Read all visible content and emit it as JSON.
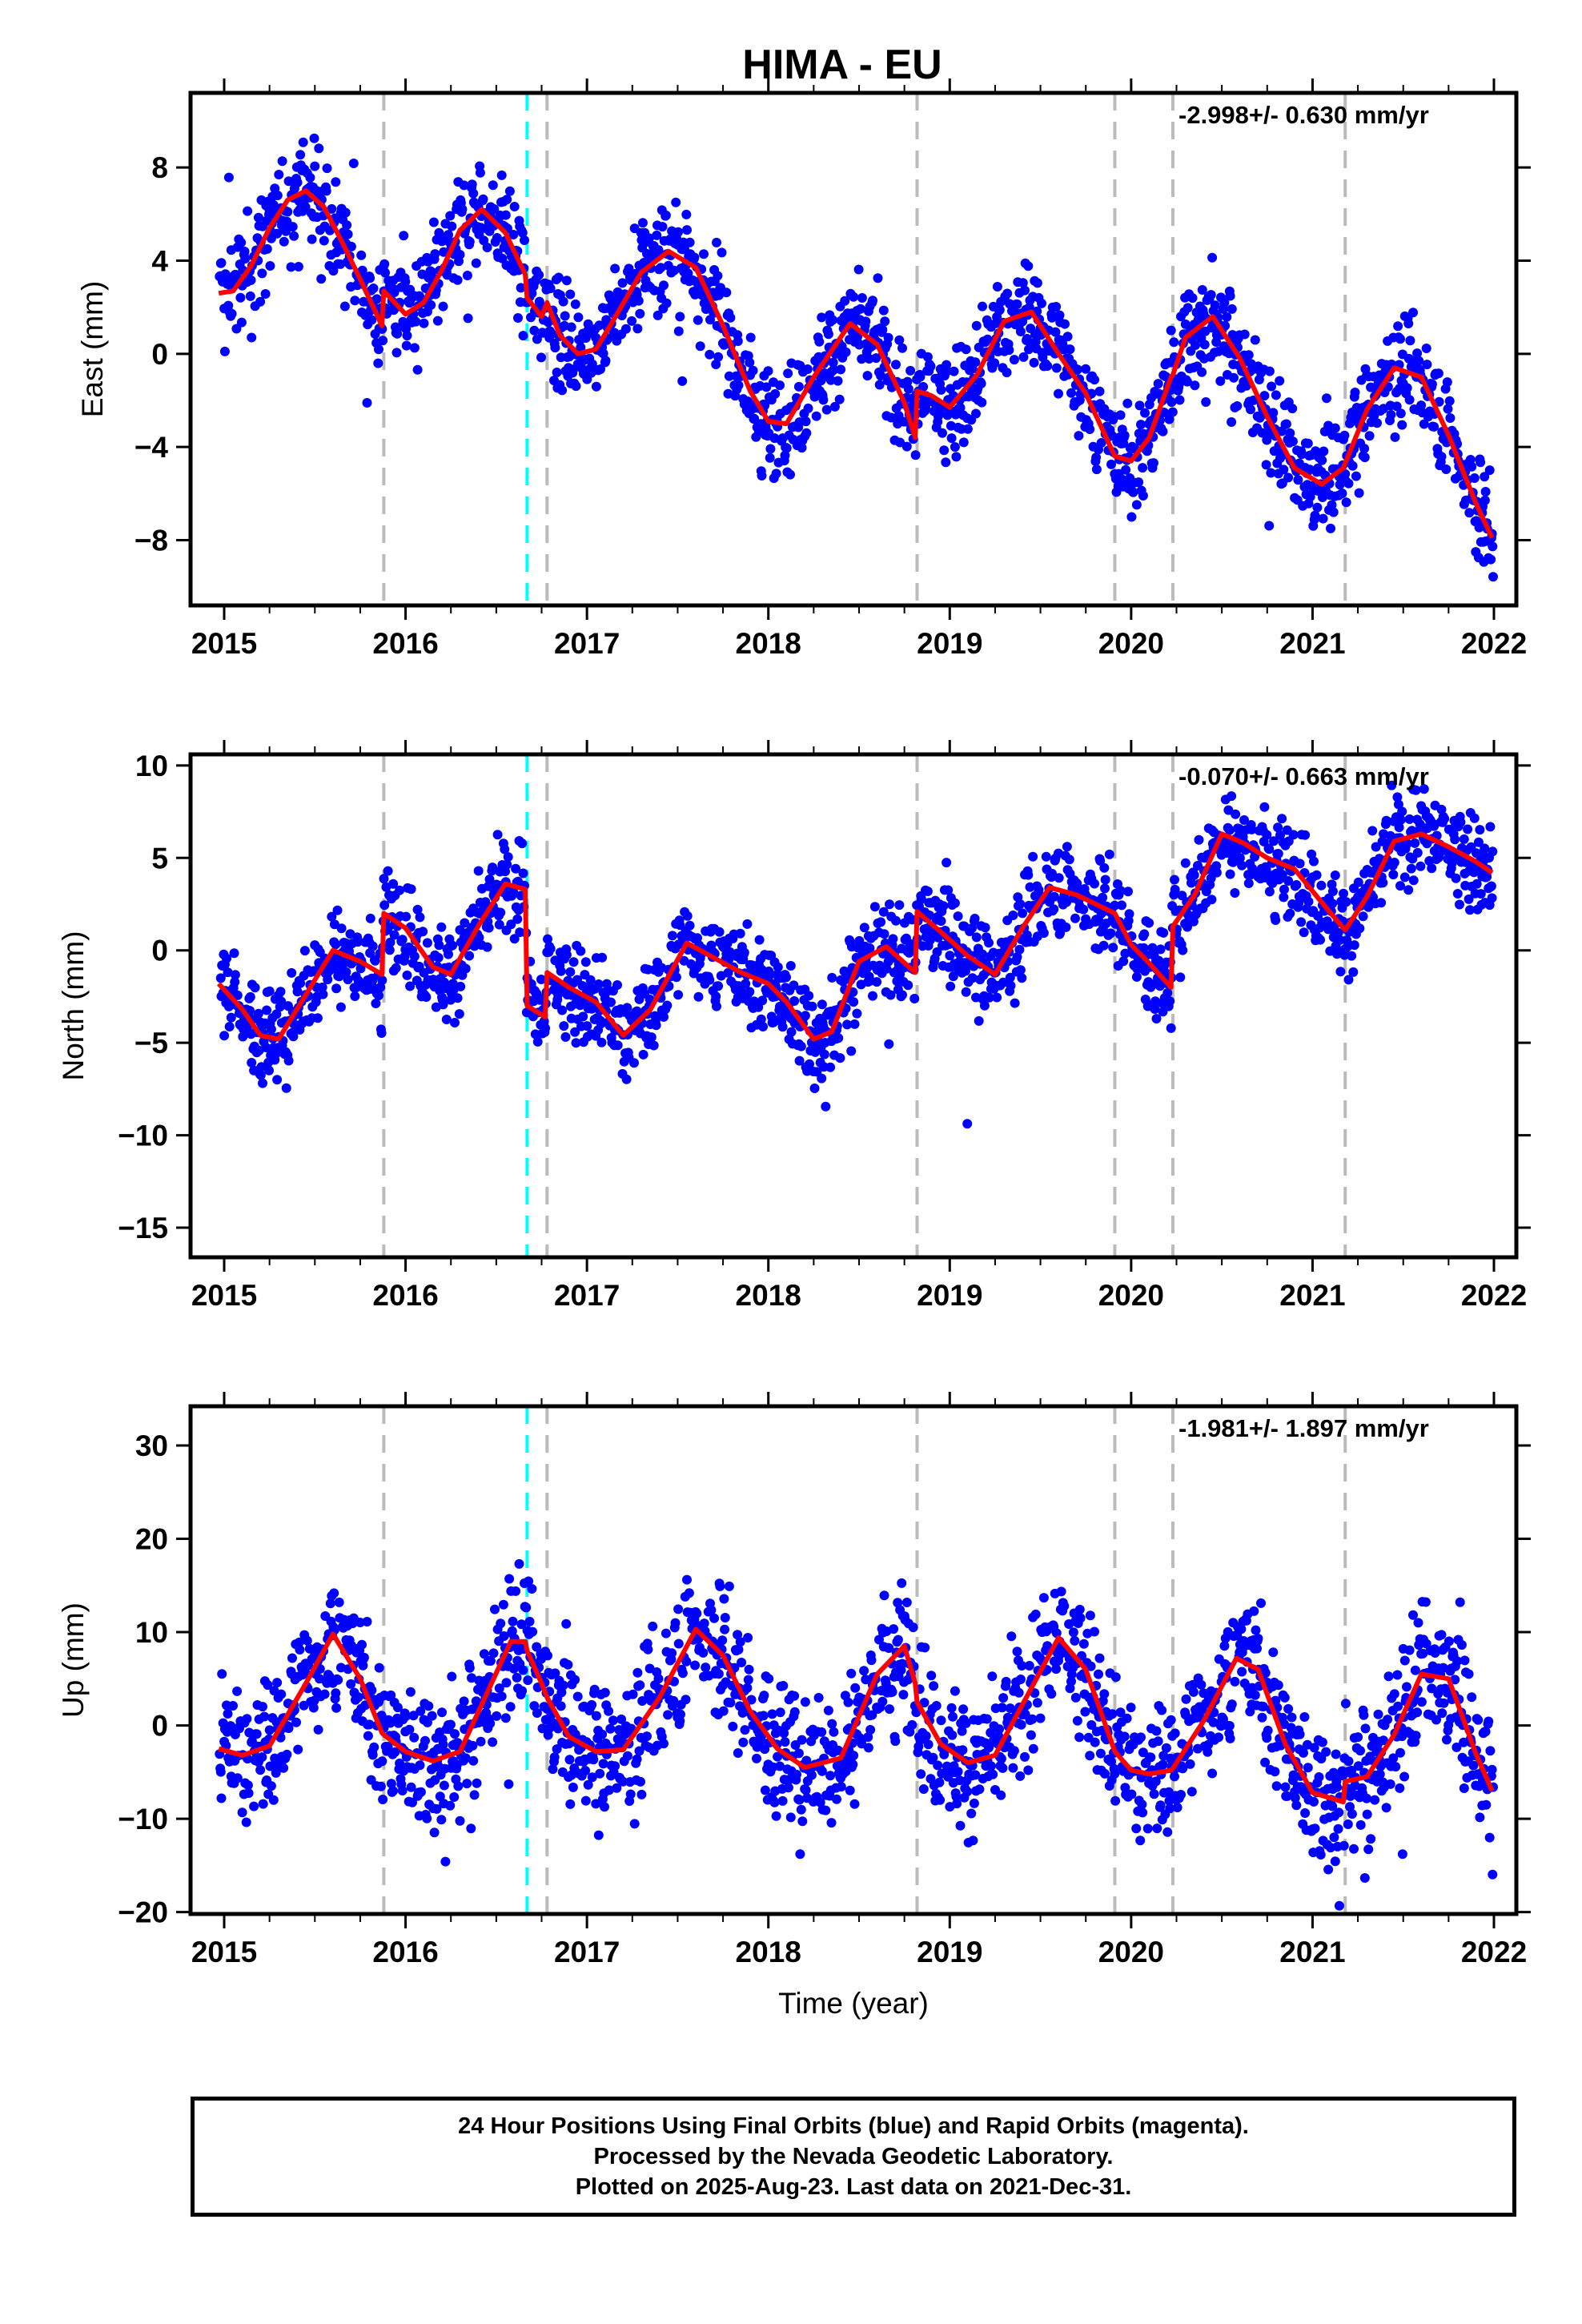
{
  "title": "HIMA - EU",
  "footer": {
    "line1": "24 Hour Positions Using Final Orbits (blue) and Rapid Orbits (magenta).",
    "line2": "Processed by the Nevada Geodetic Laboratory.",
    "line3": "Plotted on 2025-Aug-23. Last data on 2021-Dec-31."
  },
  "colors": {
    "final_orbits": "#0000ff",
    "model_fit": "#ff0000",
    "equipment_change": "#bbbbbb",
    "earthquake_event": "#00ffff"
  },
  "chart_data": [
    {
      "type": "scatter",
      "name": "east",
      "title": "",
      "xlabel": "",
      "ylabel": "East (mm)",
      "rate_label": "-2.998+/- 0.630 mm/yr",
      "xlim": [
        2014.8,
        2022.15
      ],
      "ylim": [
        -10.8,
        11.2
      ],
      "xticks": [
        2015,
        2016,
        2017,
        2018,
        2019,
        2020,
        2021,
        2022
      ],
      "yticks": [
        -8,
        -4,
        0,
        4,
        8
      ],
      "grid": false,
      "vlines_gray": [
        2015.88,
        2016.78,
        2018.82,
        2019.91,
        2020.23,
        2021.18
      ],
      "vlines_cyan": [
        2016.67
      ],
      "fit": {
        "x": [
          2014.97,
          2015.05,
          2015.15,
          2015.25,
          2015.35,
          2015.45,
          2015.55,
          2015.65,
          2015.75,
          2015.87,
          2015.88,
          2016.0,
          2016.1,
          2016.2,
          2016.3,
          2016.42,
          2016.55,
          2016.66,
          2016.67,
          2016.75,
          2016.78,
          2016.85,
          2016.95,
          2017.05,
          2017.15,
          2017.3,
          2017.45,
          2017.6,
          2017.75,
          2017.9,
          2018.0,
          2018.1,
          2018.25,
          2018.45,
          2018.6,
          2018.75,
          2018.81,
          2018.82,
          2018.9,
          2019.0,
          2019.15,
          2019.3,
          2019.45,
          2019.6,
          2019.75,
          2019.91,
          2020.0,
          2020.1,
          2020.22,
          2020.23,
          2020.3,
          2020.45,
          2020.6,
          2020.75,
          2020.9,
          2021.05,
          2021.17,
          2021.18,
          2021.3,
          2021.45,
          2021.6,
          2021.75,
          2021.9,
          2021.99
        ],
        "y": [
          2.6,
          2.7,
          3.8,
          5.4,
          6.6,
          7.0,
          6.3,
          4.8,
          3.2,
          1.2,
          2.7,
          1.7,
          2.2,
          3.6,
          5.3,
          6.2,
          5.2,
          3.4,
          2.4,
          1.6,
          2.2,
          0.8,
          0.0,
          0.2,
          1.5,
          3.5,
          4.4,
          3.7,
          1.2,
          -1.6,
          -2.9,
          -3.0,
          -1.0,
          1.3,
          0.4,
          -2.1,
          -3.6,
          -1.6,
          -1.8,
          -2.3,
          -0.9,
          1.4,
          1.8,
          0.0,
          -1.7,
          -4.4,
          -4.6,
          -3.6,
          -1.0,
          -0.9,
          0.7,
          1.6,
          -0.2,
          -2.7,
          -4.9,
          -5.6,
          -4.9,
          -4.7,
          -2.4,
          -0.6,
          -1.0,
          -3.5,
          -6.4,
          -7.9
        ]
      }
    },
    {
      "type": "scatter",
      "name": "north",
      "title": "",
      "xlabel": "",
      "ylabel": "North (mm)",
      "rate_label": "-0.070+/- 0.663 mm/yr",
      "xlim": [
        2014.8,
        2022.15
      ],
      "ylim": [
        -16.6,
        10.6
      ],
      "xticks": [
        2015,
        2016,
        2017,
        2018,
        2019,
        2020,
        2021,
        2022
      ],
      "yticks": [
        -15,
        -10,
        -5,
        0,
        5,
        10
      ],
      "grid": false,
      "vlines_gray": [
        2015.88,
        2016.78,
        2018.82,
        2019.91,
        2020.23,
        2021.18
      ],
      "vlines_cyan": [
        2016.67
      ],
      "fit": {
        "x": [
          2014.97,
          2015.1,
          2015.2,
          2015.3,
          2015.45,
          2015.6,
          2015.75,
          2015.87,
          2015.88,
          2016.0,
          2016.15,
          2016.25,
          2016.4,
          2016.55,
          2016.66,
          2016.67,
          2016.77,
          2016.78,
          2016.9,
          2017.05,
          2017.2,
          2017.35,
          2017.55,
          2017.7,
          2017.85,
          2018.0,
          2018.1,
          2018.25,
          2018.35,
          2018.5,
          2018.65,
          2018.81,
          2018.82,
          2018.95,
          2019.1,
          2019.25,
          2019.4,
          2019.55,
          2019.7,
          2019.91,
          2020.0,
          2020.1,
          2020.22,
          2020.23,
          2020.35,
          2020.5,
          2020.62,
          2020.75,
          2020.9,
          2021.05,
          2021.17,
          2021.18,
          2021.3,
          2021.45,
          2021.6,
          2021.75,
          2021.9,
          2021.99
        ],
        "y": [
          -1.8,
          -3.2,
          -4.6,
          -4.8,
          -2.4,
          0.0,
          -0.6,
          -1.3,
          2.0,
          1.2,
          -0.9,
          -1.3,
          1.3,
          3.6,
          3.3,
          -3.0,
          -3.6,
          -1.2,
          -2.0,
          -2.8,
          -4.6,
          -3.2,
          0.4,
          -0.4,
          -1.2,
          -1.8,
          -2.8,
          -4.8,
          -4.4,
          -0.6,
          0.2,
          -1.2,
          2.1,
          1.0,
          -0.3,
          -1.3,
          1.2,
          3.4,
          3.0,
          2.0,
          0.3,
          -0.7,
          -2.0,
          1.3,
          3.0,
          6.3,
          5.8,
          5.0,
          4.4,
          2.6,
          1.2,
          1.1,
          2.9,
          5.9,
          6.3,
          5.6,
          4.8,
          4.2
        ]
      }
    },
    {
      "type": "scatter",
      "name": "up",
      "title": "",
      "xlabel": "Time (year)",
      "ylabel": "Up (mm)",
      "rate_label": "-1.981+/- 1.897 mm/yr",
      "xlim": [
        2014.8,
        2022.15
      ],
      "ylim": [
        -20.2,
        34.2
      ],
      "xticks": [
        2015,
        2016,
        2017,
        2018,
        2019,
        2020,
        2021,
        2022
      ],
      "yticks": [
        -20,
        -10,
        0,
        10,
        20,
        30
      ],
      "grid": false,
      "vlines_gray": [
        2015.88,
        2016.78,
        2018.82,
        2019.91,
        2020.23,
        2021.18
      ],
      "vlines_cyan": [
        2016.67
      ],
      "fit": {
        "x": [
          2014.97,
          2015.1,
          2015.25,
          2015.45,
          2015.6,
          2015.75,
          2015.87,
          2015.88,
          2016.0,
          2016.15,
          2016.3,
          2016.45,
          2016.58,
          2016.66,
          2016.67,
          2016.75,
          2016.78,
          2016.9,
          2017.05,
          2017.2,
          2017.4,
          2017.6,
          2017.75,
          2017.9,
          2018.05,
          2018.2,
          2018.4,
          2018.6,
          2018.75,
          2018.81,
          2018.82,
          2018.95,
          2019.1,
          2019.25,
          2019.45,
          2019.6,
          2019.75,
          2019.91,
          2020.0,
          2020.1,
          2020.22,
          2020.23,
          2020.4,
          2020.58,
          2020.7,
          2020.85,
          2021.0,
          2021.17,
          2021.18,
          2021.3,
          2021.45,
          2021.6,
          2021.75,
          2021.9,
          2021.99
        ],
        "y": [
          -2.5,
          -3.2,
          -2.2,
          4.5,
          9.8,
          5.0,
          -0.8,
          -1.0,
          -2.8,
          -3.8,
          -2.8,
          3.5,
          9.0,
          9.0,
          8.0,
          4.5,
          3.0,
          -1.2,
          -2.8,
          -2.6,
          3.0,
          10.3,
          7.5,
          1.5,
          -2.5,
          -4.5,
          -3.5,
          5.5,
          8.5,
          4.5,
          2.5,
          -2.0,
          -4.0,
          -3.2,
          4.0,
          9.4,
          6.0,
          -2.8,
          -4.8,
          -5.2,
          -4.8,
          -4.6,
          0.5,
          7.2,
          6.0,
          -2.0,
          -7.2,
          -8.2,
          -6.0,
          -5.5,
          -1.0,
          5.5,
          5.0,
          -3.0,
          -7.0
        ]
      }
    }
  ]
}
